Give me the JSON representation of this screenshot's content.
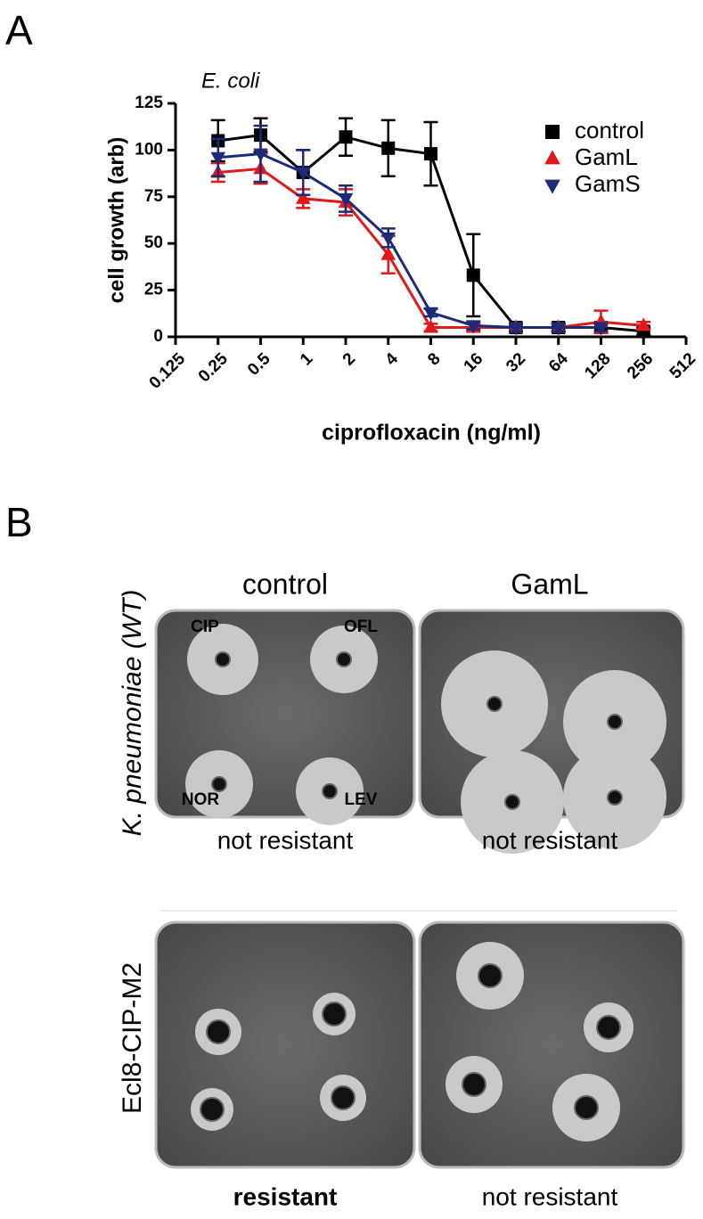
{
  "panel_a": {
    "label": "A"
  },
  "chart_data": {
    "type": "line",
    "title": "E. coli",
    "ylabel": "cell growth (arb)",
    "xlabel": "ciprofloxacin (ng/ml)",
    "xscale": "log2",
    "xlim": [
      0.125,
      512
    ],
    "xticks": [
      0.125,
      0.25,
      0.5,
      1,
      2,
      4,
      8,
      16,
      32,
      64,
      128,
      256,
      512
    ],
    "ylim": [
      0,
      125
    ],
    "yticks": [
      0,
      25,
      50,
      75,
      100,
      125
    ],
    "legend": "upper right",
    "x": [
      0.25,
      0.5,
      1,
      2,
      4,
      8,
      16,
      32,
      64,
      128,
      256
    ],
    "series": [
      {
        "name": "control",
        "color": "#000000",
        "marker": "square",
        "values": [
          105,
          108,
          88,
          107,
          101,
          98,
          33,
          5,
          5,
          5,
          3
        ],
        "errors": [
          11,
          9,
          12,
          10,
          15,
          17,
          22,
          2,
          2,
          2,
          2
        ]
      },
      {
        "name": "GamL",
        "color": "#e0191b",
        "marker": "triangle-up",
        "values": [
          88,
          90,
          74,
          72,
          44,
          5,
          5,
          5,
          5,
          8,
          6
        ],
        "errors": [
          5,
          8,
          5,
          7,
          10,
          2,
          2,
          2,
          2,
          6,
          2
        ]
      },
      {
        "name": "GamS",
        "color": "#1c2a7a",
        "marker": "triangle-down",
        "values": [
          96,
          98,
          88,
          74,
          53,
          13,
          6,
          5,
          5,
          5,
          null
        ],
        "errors": [
          10,
          15,
          12,
          7,
          5,
          2,
          2,
          2,
          2,
          2,
          null
        ]
      }
    ]
  },
  "panel_b": {
    "label": "B",
    "columns": [
      "control",
      "GamL"
    ],
    "rows": [
      "K. pneumoniae (WT)",
      "Ecl8-CIP-M2"
    ],
    "disk_labels": [
      "CIP",
      "OFL",
      "NOR",
      "LEV"
    ],
    "captions": [
      [
        "not resistant",
        "not resistant"
      ],
      [
        "resistant",
        "not resistant"
      ]
    ]
  }
}
